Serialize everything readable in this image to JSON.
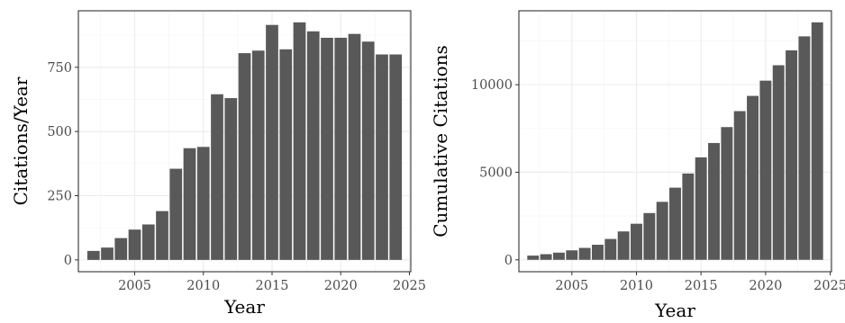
{
  "colors": {
    "bar": "#595959",
    "grid": "#ebebeb",
    "border": "#333333",
    "tick_text": "#4d4d4d"
  },
  "chart_data": [
    {
      "type": "bar",
      "xlabel": "Year",
      "ylabel": "Citations/Year",
      "x": [
        2002,
        2003,
        2004,
        2005,
        2006,
        2007,
        2008,
        2009,
        2010,
        2011,
        2012,
        2013,
        2014,
        2015,
        2016,
        2017,
        2018,
        2019,
        2020,
        2021,
        2022,
        2023,
        2024
      ],
      "values": [
        35,
        48,
        85,
        118,
        138,
        190,
        355,
        435,
        440,
        645,
        630,
        805,
        815,
        915,
        820,
        925,
        890,
        865,
        865,
        880,
        850,
        800,
        800
      ],
      "xlim": [
        2000.9,
        2025.1
      ],
      "ylim": [
        -46,
        970
      ],
      "x_ticks": [
        2005,
        2010,
        2015,
        2020,
        2025
      ],
      "x_tick_labels": [
        "2005",
        "2010",
        "2015",
        "2020",
        "2025"
      ],
      "y_ticks": [
        0,
        250,
        500,
        750
      ],
      "y_tick_labels": [
        "0",
        "250",
        "500",
        "750"
      ],
      "grid": true,
      "legend": "none"
    },
    {
      "type": "bar",
      "xlabel": "Year",
      "ylabel": "Cumulative Citations",
      "x": [
        2002,
        2003,
        2004,
        2005,
        2006,
        2007,
        2008,
        2009,
        2010,
        2011,
        2012,
        2013,
        2014,
        2015,
        2016,
        2017,
        2018,
        2019,
        2020,
        2021,
        2022,
        2023,
        2024
      ],
      "values": [
        240,
        320,
        410,
        540,
        680,
        860,
        1190,
        1620,
        2060,
        2670,
        3310,
        4120,
        4930,
        5850,
        6670,
        7580,
        8490,
        9360,
        10230,
        11110,
        11960,
        12760,
        13560
      ],
      "xlim": [
        2000.9,
        2025.1
      ],
      "ylim": [
        -680,
        14220
      ],
      "x_ticks": [
        2005,
        2010,
        2015,
        2020,
        2025
      ],
      "x_tick_labels": [
        "2005",
        "2010",
        "2015",
        "2020",
        "2025"
      ],
      "y_ticks": [
        0,
        5000,
        10000
      ],
      "y_tick_labels": [
        "0",
        "5000",
        "10000"
      ],
      "grid": true,
      "legend": "none"
    }
  ]
}
